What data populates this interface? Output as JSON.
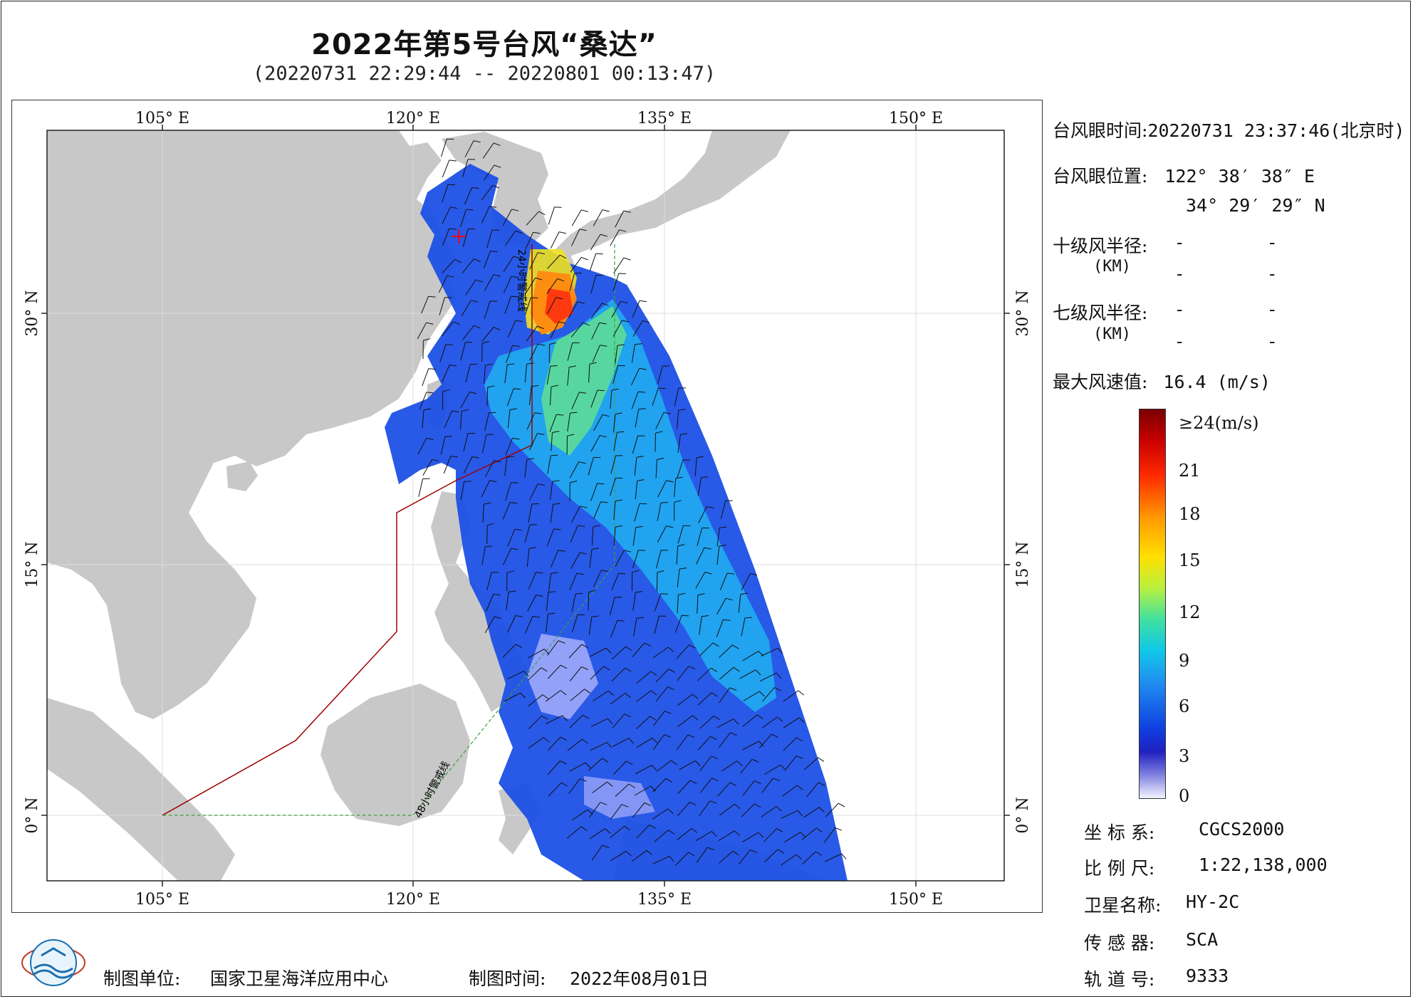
{
  "title": "2022年第5号台风“桑达”",
  "subtitle": "(20220731 22:29:44 -- 20220801 00:13:47)",
  "map": {
    "lon_ticks": [
      "105° E",
      "120° E",
      "135° E",
      "150° E"
    ],
    "lat_ticks": [
      "30° N",
      "15° N",
      "0° N"
    ],
    "warning_line_24h": "24小时警戒线",
    "warning_line_48h": "48小时警戒线",
    "colors": {
      "land": "#c8c8c8",
      "sea": "#ffffff",
      "line_24h": "#a00000",
      "line_48h": "#40a040",
      "eye_marker": "#ff0000"
    }
  },
  "info": {
    "eye_time_label": "台风眼时间:",
    "eye_time_value": "20220731 23:37:46(北京时)",
    "eye_pos_label": "台风眼位置:",
    "eye_lon": "122° 38′ 38″ E",
    "eye_lat": "34° 29′ 29″ N",
    "r10_label": "十级风半径:",
    "r10_unit": "(KM)",
    "r7_label": "七级风半径:",
    "r7_unit": "(KM)",
    "dash": "-",
    "max_wind_label": "最大风速值:",
    "max_wind_value": "16.4  (m/s)"
  },
  "colorbar": {
    "labels": [
      "≥24(m/s)",
      "21",
      "18",
      "15",
      "12",
      "9",
      "6",
      "3",
      "0"
    ]
  },
  "footer": {
    "crs_label": "坐 标 系:",
    "crs_value": "CGCS2000",
    "scale_label": "比 例 尺:",
    "scale_value": "1:22,138,000",
    "satellite_label": "卫星名称:",
    "satellite_value": "HY-2C",
    "sensor_label": "传 感 器:",
    "sensor_value": "SCA",
    "orbit_label": "轨 道 号:",
    "orbit_value": "9333",
    "unit_label": "制图单位:",
    "unit_value": "国家卫星海洋应用中心",
    "date_label": "制图时间:",
    "date_value": "2022年08月01日"
  }
}
